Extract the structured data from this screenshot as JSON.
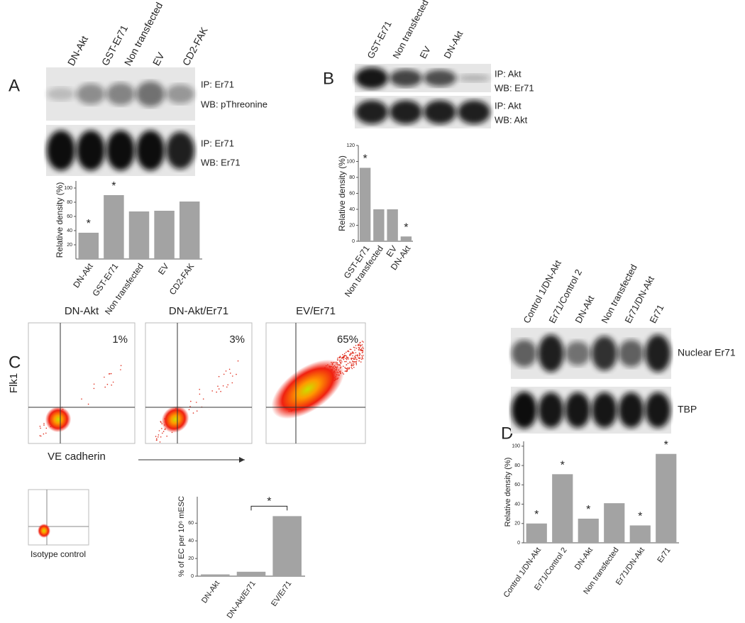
{
  "chart_data": [
    {
      "type": "bar",
      "y_label": "Relative density (%)",
      "categories": [
        "DN-Akt",
        "GST-Er71",
        "Non transfected",
        "EV",
        "CD2-FAK"
      ],
      "values": [
        37,
        90,
        67,
        68,
        81
      ],
      "color": "#a3a3a3",
      "ylim": [
        0,
        110
      ],
      "yticks": [
        20,
        40,
        60,
        80,
        100
      ],
      "annotations": [
        {
          "category": "DN-Akt",
          "text": "*"
        },
        {
          "category": "GST-Er71",
          "text": "*"
        }
      ]
    },
    {
      "type": "bar",
      "y_label": "Relative density (%)",
      "categories": [
        "GST-Er71",
        "Non transfected",
        "EV",
        "DN-Akt"
      ],
      "values": [
        92,
        40,
        40,
        6
      ],
      "color": "#a3a3a3",
      "ylim": [
        0,
        120
      ],
      "yticks": [
        0,
        20,
        40,
        60,
        80,
        100,
        120
      ],
      "annotations": [
        {
          "category": "GST-Er71",
          "text": "*"
        },
        {
          "category": "DN-Akt",
          "text": "*"
        }
      ]
    },
    {
      "type": "bar",
      "y_label": "% of EC per 10⁶ mESC",
      "categories": [
        "DN-Akt",
        "DN-Akt/Er71",
        "EV/Er71"
      ],
      "values": [
        2,
        5,
        68
      ],
      "color": "#a3a3a3",
      "ylim": [
        0,
        90
      ],
      "yticks": [
        0,
        20,
        40,
        60
      ],
      "annotations": [
        {
          "from": "DN-Akt/Er71",
          "to": "EV/Er71",
          "text": "*"
        }
      ]
    },
    {
      "type": "bar",
      "y_label": "Relative density (%)",
      "categories": [
        "Control 1/DN-Akt",
        "Er71/Control 2",
        "DN-Akt",
        "Non transfected",
        "Er71/DN-Akt",
        "Er71"
      ],
      "values": [
        20,
        71,
        25,
        41,
        18,
        92
      ],
      "color": "#a3a3a3",
      "ylim": [
        0,
        105
      ],
      "yticks": [
        0,
        20,
        40,
        60,
        80,
        100
      ],
      "annotations": [
        {
          "category": "Control 1/DN-Akt",
          "text": "*"
        },
        {
          "category": "Er71/Control 2",
          "text": "*"
        },
        {
          "category": "DN-Akt",
          "text": "*"
        },
        {
          "category": "Er71/DN-Akt",
          "text": "*"
        },
        {
          "category": "Er71",
          "text": "*"
        }
      ]
    }
  ],
  "panels": [
    {
      "letter": "A",
      "lanes": [
        "DN-Akt",
        "GST-Er71",
        "Non transfected",
        "EV",
        "CD2-FAK"
      ],
      "blot_labels": [
        "IP: Er71",
        "WB: pThreonine",
        "IP: Er71",
        "WB: Er71"
      ]
    },
    {
      "letter": "B",
      "lanes": [
        "GST-Er71",
        "Non transfected",
        "EV",
        "DN-Akt"
      ],
      "blot_labels": [
        "IP: Akt",
        "WB: Er71",
        "IP: Akt",
        "WB: Akt"
      ]
    },
    {
      "letter": "C",
      "flow": [
        {
          "title": "DN-Akt",
          "percent": "1%"
        },
        {
          "title": "DN-Akt/Er71",
          "percent": "3%"
        },
        {
          "title": "EV/Er71",
          "percent": "65%"
        }
      ],
      "y_label": "Flk1",
      "x_label": "VE cadherin",
      "isotype": "Isotype control"
    },
    {
      "letter": "D",
      "lanes": [
        "Control 1/DN-Akt",
        "Er71/Control 2",
        "DN-Akt",
        "Non transfected",
        "Er71/DN-Akt",
        "Er71"
      ],
      "blot_labels": [
        "Nuclear Er71",
        "TBP"
      ]
    }
  ]
}
